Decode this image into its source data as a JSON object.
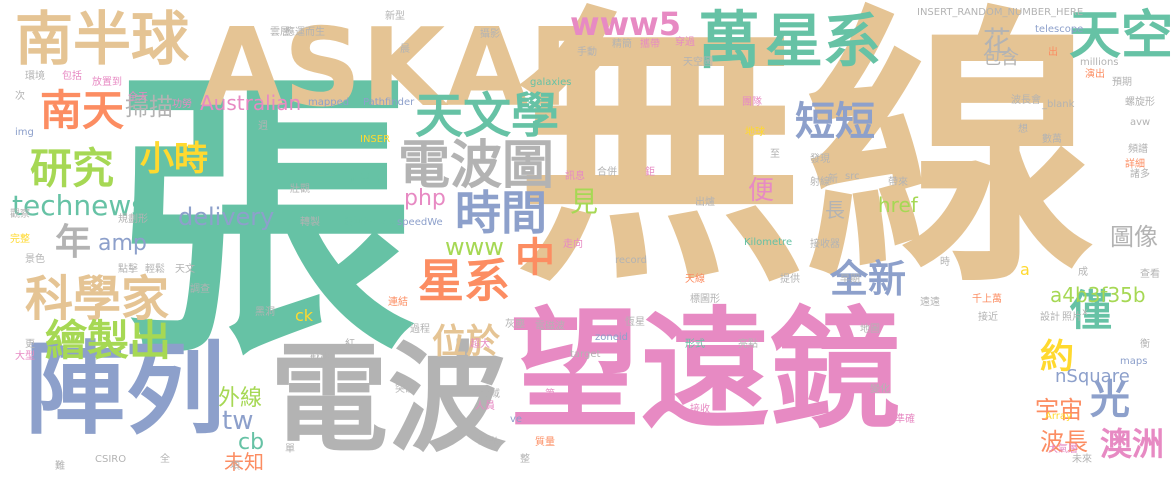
{
  "palette": {
    "tan": "#e5c494",
    "green": "#66c2a5",
    "pink": "#e78ac3",
    "gray": "#b3b3b3",
    "blue": "#8da0cb",
    "orange": "#fc8d62",
    "lime": "#a6d854",
    "yellow": "#ffd92f"
  },
  "words": [
    {
      "text": "無線",
      "color": "tan"
    },
    {
      "text": "張",
      "color": "green"
    },
    {
      "text": "望遠鏡",
      "color": "pink"
    },
    {
      "text": "ASKAP",
      "color": "tan"
    },
    {
      "text": "電波",
      "color": "gray"
    },
    {
      "text": "陣列",
      "color": "blue"
    },
    {
      "text": "南半球",
      "color": "tan"
    },
    {
      "text": "萬",
      "color": "green"
    },
    {
      "text": "星系",
      "color": "green"
    },
    {
      "text": "天空",
      "color": "green"
    },
    {
      "text": "www5",
      "color": "pink"
    },
    {
      "text": "天文學",
      "color": "green"
    },
    {
      "text": "電波圖",
      "color": "gray"
    },
    {
      "text": "時間",
      "color": "blue"
    },
    {
      "text": "南天",
      "color": "orange"
    },
    {
      "text": "研究",
      "color": "lime"
    },
    {
      "text": "小時",
      "color": "yellow"
    },
    {
      "text": "科學家",
      "color": "tan"
    },
    {
      "text": "星系",
      "color": "orange"
    },
    {
      "text": "繪製出",
      "color": "lime"
    },
    {
      "text": "technews",
      "color": "green"
    },
    {
      "text": "短短",
      "color": "blue"
    },
    {
      "text": "花",
      "color": "gray"
    },
    {
      "text": "Australian",
      "color": "pink"
    },
    {
      "text": "掃描",
      "color": "gray"
    },
    {
      "text": "php",
      "color": "pink"
    },
    {
      "text": "www",
      "color": "lime"
    },
    {
      "text": "中",
      "color": "orange"
    },
    {
      "text": "全新",
      "color": "blue"
    },
    {
      "text": "位於",
      "color": "tan"
    },
    {
      "text": "年",
      "color": "gray"
    },
    {
      "text": "amp",
      "color": "blue"
    },
    {
      "text": "delivery",
      "color": "blue"
    },
    {
      "text": "外線",
      "color": "lime"
    },
    {
      "text": "tw",
      "color": "blue"
    },
    {
      "text": "cb",
      "color": "green"
    },
    {
      "text": "未知",
      "color": "orange"
    },
    {
      "text": "見",
      "color": "lime"
    },
    {
      "text": "便",
      "color": "pink"
    },
    {
      "text": "長",
      "color": "gray"
    },
    {
      "text": "僅",
      "color": "green"
    },
    {
      "text": "光",
      "color": "blue"
    },
    {
      "text": "約",
      "color": "yellow"
    },
    {
      "text": "宇宙",
      "color": "orange"
    },
    {
      "text": "澳洲",
      "color": "pink"
    },
    {
      "text": "波長",
      "color": "orange"
    },
    {
      "text": "圖像",
      "color": "gray"
    },
    {
      "text": "a4b3f35b",
      "color": "lime"
    },
    {
      "text": "nSquare",
      "color": "blue"
    },
    {
      "text": "href",
      "color": "lime"
    },
    {
      "text": "包含",
      "color": "gray"
    },
    {
      "text": "ck",
      "color": "yellow"
    },
    {
      "text": "a",
      "color": "yellow"
    },
    {
      "text": "超大",
      "color": "pink"
    },
    {
      "text": "新型",
      "color": "gray"
    },
    {
      "text": "INSERT_RANDOM_NUMBER_HERE",
      "color": "gray"
    },
    {
      "text": "telescope",
      "color": "blue"
    },
    {
      "text": "millions",
      "color": "gray"
    },
    {
      "text": "galaxies",
      "color": "green"
    },
    {
      "text": "Pathfinder",
      "color": "blue"
    },
    {
      "text": "mapped",
      "color": "blue"
    },
    {
      "text": "_blank",
      "color": "gray"
    },
    {
      "text": "波長會",
      "color": "gray"
    },
    {
      "text": "Kilometre",
      "color": "green"
    },
    {
      "text": "zoneid",
      "color": "blue"
    },
    {
      "text": "record",
      "color": "gray"
    },
    {
      "text": "target",
      "color": "gray"
    },
    {
      "text": "CSIRO",
      "color": "gray"
    },
    {
      "text": "speedWe",
      "color": "blue"
    },
    {
      "text": "src",
      "color": "gray"
    },
    {
      "text": "img",
      "color": "blue"
    },
    {
      "text": "Array",
      "color": "yellow"
    },
    {
      "text": "maps",
      "color": "blue"
    },
    {
      "text": "avw",
      "color": "gray"
    },
    {
      "text": "ve",
      "color": "blue"
    },
    {
      "text": "INSER",
      "color": "yellow"
    },
    {
      "text": "壯觀",
      "color": "gray"
    },
    {
      "text": "研製出",
      "color": "green"
    },
    {
      "text": "銀河系中心",
      "color": "green"
    },
    {
      "text": "轉製",
      "color": "gray"
    },
    {
      "text": "規劃形",
      "color": "gray"
    },
    {
      "text": "觀察",
      "color": "gray"
    },
    {
      "text": "景色",
      "color": "gray"
    },
    {
      "text": "完整",
      "color": "yellow"
    },
    {
      "text": "點擊",
      "color": "gray"
    },
    {
      "text": "輕鬆",
      "color": "gray"
    },
    {
      "text": "天文",
      "color": "gray"
    },
    {
      "text": "調查",
      "color": "gray"
    },
    {
      "text": "黑洞",
      "color": "gray"
    },
    {
      "text": "過程",
      "color": "gray"
    },
    {
      "text": "灰塵",
      "color": "gray"
    },
    {
      "text": "突破",
      "color": "gray"
    },
    {
      "text": "領域",
      "color": "gray"
    },
    {
      "text": "人員",
      "color": "pink"
    },
    {
      "text": "曙光",
      "color": "gray"
    },
    {
      "text": "質量",
      "color": "orange"
    },
    {
      "text": "第一",
      "color": "pink"
    },
    {
      "text": "電磁波",
      "color": "gray"
    },
    {
      "text": "恆星",
      "color": "gray"
    },
    {
      "text": "天線",
      "color": "orange"
    },
    {
      "text": "標圖形",
      "color": "gray"
    },
    {
      "text": "形式",
      "color": "green"
    },
    {
      "text": "亮點",
      "color": "gray"
    },
    {
      "text": "提供",
      "color": "gray"
    },
    {
      "text": "早期",
      "color": "gray"
    },
    {
      "text": "接收器",
      "color": "gray"
    },
    {
      "text": "走向",
      "color": "pink"
    },
    {
      "text": "連結",
      "color": "orange"
    },
    {
      "text": "戳題",
      "color": "gray"
    },
    {
      "text": "紅",
      "color": "gray"
    },
    {
      "text": "環境",
      "color": "gray"
    },
    {
      "text": "包括",
      "color": "pink"
    },
    {
      "text": "放置到",
      "color": "pink"
    },
    {
      "text": "全天",
      "color": "pink"
    },
    {
      "text": "功勞",
      "color": "pink"
    },
    {
      "text": "雲層",
      "color": "gray"
    },
    {
      "text": "應運而生",
      "color": "gray"
    },
    {
      "text": "攝影",
      "color": "gray"
    },
    {
      "text": "手動",
      "color": "gray"
    },
    {
      "text": "精簡",
      "color": "gray"
    },
    {
      "text": "穿過",
      "color": "pink"
    },
    {
      "text": "天空圖",
      "color": "gray"
    },
    {
      "text": "團隊",
      "color": "pink"
    },
    {
      "text": "地球",
      "color": "yellow"
    },
    {
      "text": "合併",
      "color": "gray"
    },
    {
      "text": "訊息",
      "color": "pink"
    },
    {
      "text": "發現",
      "color": "gray"
    },
    {
      "text": "射線",
      "color": "gray"
    },
    {
      "text": "帶來",
      "color": "gray"
    },
    {
      "text": "時",
      "color": "gray"
    },
    {
      "text": "千上萬",
      "color": "orange"
    },
    {
      "text": "遠遠",
      "color": "gray"
    },
    {
      "text": "接近",
      "color": "gray"
    },
    {
      "text": "設計",
      "color": "gray"
    },
    {
      "text": "照片",
      "color": "gray"
    },
    {
      "text": "地圖",
      "color": "gray"
    },
    {
      "text": "成",
      "color": "gray"
    },
    {
      "text": "查看",
      "color": "gray"
    },
    {
      "text": "預期",
      "color": "gray"
    },
    {
      "text": "螺旋形",
      "color": "gray"
    },
    {
      "text": "頻譜",
      "color": "gray"
    },
    {
      "text": "詳細",
      "color": "orange"
    },
    {
      "text": "諸多",
      "color": "gray"
    },
    {
      "text": "數萬",
      "color": "gray"
    },
    {
      "text": "變化",
      "color": "gray"
    },
    {
      "text": "準確",
      "color": "pink"
    },
    {
      "text": "大氣層",
      "color": "pink"
    },
    {
      "text": "未來",
      "color": "gray"
    },
    {
      "text": "接收",
      "color": "pink"
    },
    {
      "text": "出爐",
      "color": "gray"
    },
    {
      "text": "出",
      "color": "orange"
    },
    {
      "text": "新",
      "color": "gray"
    },
    {
      "text": "想",
      "color": "gray"
    },
    {
      "text": "次",
      "color": "gray"
    },
    {
      "text": "更",
      "color": "gray"
    },
    {
      "text": "大型",
      "color": "pink"
    },
    {
      "text": "全",
      "color": "gray"
    },
    {
      "text": "單",
      "color": "gray"
    },
    {
      "text": "項",
      "color": "gray"
    },
    {
      "text": "整",
      "color": "gray"
    },
    {
      "text": "難",
      "color": "gray"
    },
    {
      "text": "週",
      "color": "gray"
    },
    {
      "text": "晨",
      "color": "gray"
    },
    {
      "text": "攜帶",
      "color": "pink"
    },
    {
      "text": "演出",
      "color": "orange"
    },
    {
      "text": "x",
      "color": "gray"
    },
    {
      "text": "衡",
      "color": "gray"
    },
    {
      "text": "鉅",
      "color": "pink"
    },
    {
      "text": "至",
      "color": "gray"
    }
  ]
}
